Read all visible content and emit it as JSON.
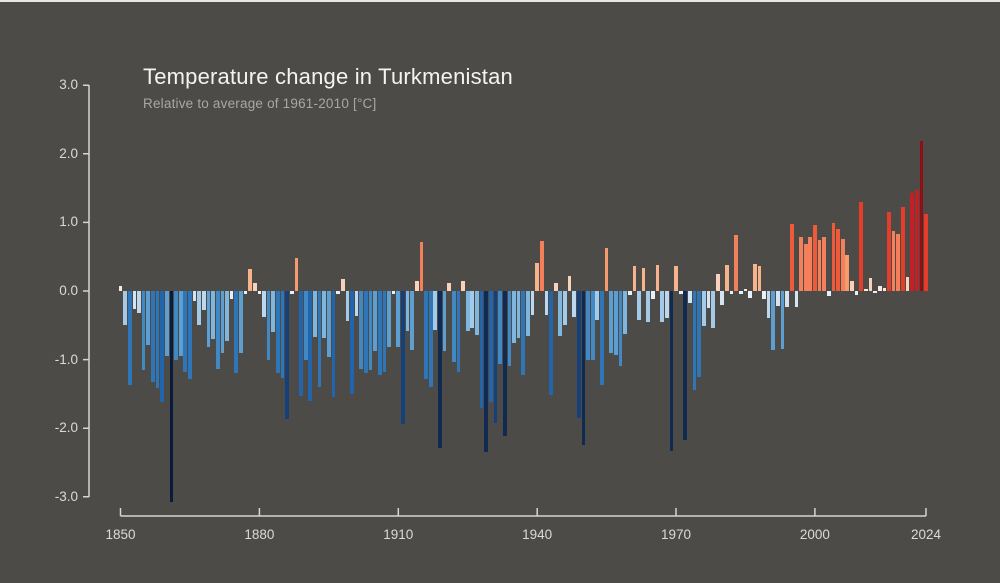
{
  "window": {
    "top_border_color": "#e9e7e5"
  },
  "header": {
    "title": "Temperature change in Turkmenistan",
    "subtitle": "Relative to average of 1961-2010  [°C]"
  },
  "chart_data": {
    "type": "bar",
    "title": "Temperature change in Turkmenistan",
    "subtitle": "Relative to average of 1961-2010 [°C]",
    "xlabel": "",
    "ylabel": "",
    "ylim": [
      -3.0,
      3.0
    ],
    "grid": false,
    "legend": false,
    "yticks": [
      {
        "label": "3.0",
        "value": 3
      },
      {
        "label": "2.0",
        "value": 2
      },
      {
        "label": "1.0",
        "value": 1
      },
      {
        "label": "0.0",
        "value": 0
      },
      {
        "label": "-1.0",
        "value": -1
      },
      {
        "label": "-2.0",
        "value": -2
      },
      {
        "label": "-3.0",
        "value": -3
      }
    ],
    "xticks": [
      {
        "label": "1850",
        "year": 1850
      },
      {
        "label": "1880",
        "year": 1880
      },
      {
        "label": "1910",
        "year": 1910
      },
      {
        "label": "1940",
        "year": 1940
      },
      {
        "label": "1970",
        "year": 1970
      },
      {
        "label": "2000",
        "year": 2000
      },
      {
        "label": "2024",
        "year": 2024
      }
    ],
    "start_year": 1850,
    "end_year": 2024,
    "values": [
      0.07,
      -0.5,
      -1.37,
      -0.26,
      -0.32,
      -1.15,
      -0.78,
      -1.33,
      -1.42,
      -1.62,
      -0.95,
      -3.07,
      -1.0,
      -0.95,
      -1.18,
      -1.28,
      -0.15,
      -0.5,
      -0.28,
      -0.82,
      -0.7,
      -1.14,
      -0.9,
      -0.73,
      -0.12,
      -1.2,
      -0.9,
      -0.04,
      0.32,
      0.12,
      -0.04,
      -0.38,
      -1.0,
      -0.6,
      -1.2,
      -1.27,
      -1.87,
      -0.05,
      0.48,
      -1.53,
      -1.0,
      -1.6,
      -0.67,
      -1.4,
      -0.69,
      -0.96,
      -1.55,
      -0.04,
      0.18,
      -0.44,
      -1.5,
      -0.37,
      -1.13,
      -1.2,
      -1.15,
      -0.88,
      -1.23,
      -1.18,
      -0.81,
      -0.04,
      -0.82,
      -1.94,
      -0.59,
      -0.86,
      0.15,
      0.72,
      -1.28,
      -1.4,
      -0.57,
      -2.29,
      -0.88,
      0.12,
      -1.03,
      -1.18,
      0.15,
      -0.59,
      -0.54,
      -0.64,
      -1.7,
      -2.35,
      -1.62,
      -1.92,
      -1.06,
      -2.11,
      -1.1,
      -0.76,
      -0.69,
      -1.23,
      -0.66,
      -0.35,
      0.41,
      0.73,
      -0.35,
      -1.51,
      0.11,
      -0.65,
      -0.5,
      0.22,
      -0.38,
      -1.85,
      -2.25,
      -1.0,
      -1.0,
      -0.42,
      -1.37,
      0.62,
      -0.91,
      -0.93,
      -1.1,
      -0.63,
      -0.06,
      0.37,
      -0.42,
      0.33,
      -0.45,
      -0.12,
      0.38,
      -0.45,
      -0.4,
      -2.33,
      0.37,
      -0.05,
      -2.17,
      -0.18,
      -1.45,
      -1.26,
      -0.51,
      -0.25,
      -0.54,
      0.25,
      -0.2,
      0.38,
      -0.04,
      0.81,
      -0.05,
      0.03,
      -0.1,
      0.4,
      0.37,
      -0.12,
      -0.4,
      -0.86,
      -0.22,
      -0.84,
      -0.23,
      0.98,
      -0.23,
      0.78,
      0.68,
      0.79,
      0.96,
      0.74,
      0.78,
      -0.08,
      0.99,
      0.9,
      0.76,
      0.53,
      0.14,
      -0.06,
      1.3,
      0.03,
      0.19,
      -0.03,
      0.08,
      0.05,
      1.15,
      0.87,
      0.83,
      1.23,
      0.2,
      1.43,
      1.47,
      2.18,
      1.12
    ],
    "palette": [
      {
        "min": -9.0,
        "max": -2.6,
        "color": "#0a1c3e"
      },
      {
        "min": -2.6,
        "max": -2.1,
        "color": "#102a52"
      },
      {
        "min": -2.1,
        "max": -1.78,
        "color": "#16407b"
      },
      {
        "min": -1.78,
        "max": -1.48,
        "color": "#2265ad"
      },
      {
        "min": -1.48,
        "max": -1.18,
        "color": "#2e76b8"
      },
      {
        "min": -1.18,
        "max": -0.98,
        "color": "#4288c3"
      },
      {
        "min": -0.98,
        "max": -0.78,
        "color": "#5e9fd1"
      },
      {
        "min": -0.78,
        "max": -0.58,
        "color": "#7fb6de"
      },
      {
        "min": -0.58,
        "max": -0.42,
        "color": "#a3cae8"
      },
      {
        "min": -0.42,
        "max": -0.28,
        "color": "#bcd7ee"
      },
      {
        "min": -0.28,
        "max": -0.14,
        "color": "#d4e4f3"
      },
      {
        "min": -0.14,
        "max": -0.001,
        "color": "#e9eff6"
      },
      {
        "min": -0.001,
        "max": 0.1,
        "color": "#f8e9de"
      },
      {
        "min": 0.1,
        "max": 0.26,
        "color": "#f9d2bb"
      },
      {
        "min": 0.26,
        "max": 0.44,
        "color": "#f8b28c"
      },
      {
        "min": 0.44,
        "max": 0.66,
        "color": "#f69a6f"
      },
      {
        "min": 0.66,
        "max": 0.88,
        "color": "#f3805a"
      },
      {
        "min": 0.88,
        "max": 1.05,
        "color": "#ee5a3a"
      },
      {
        "min": 1.05,
        "max": 1.38,
        "color": "#e43d2a"
      },
      {
        "min": 1.38,
        "max": 1.8,
        "color": "#c32026"
      },
      {
        "min": 1.8,
        "max": 9.0,
        "color": "#8d1015"
      }
    ],
    "colors": {
      "background": "#4d4b48",
      "axis": "#d6d4d2",
      "title": "#f4f3f2",
      "subtitle": "#a9a7a5",
      "tick_label": "#dcdad8"
    }
  }
}
